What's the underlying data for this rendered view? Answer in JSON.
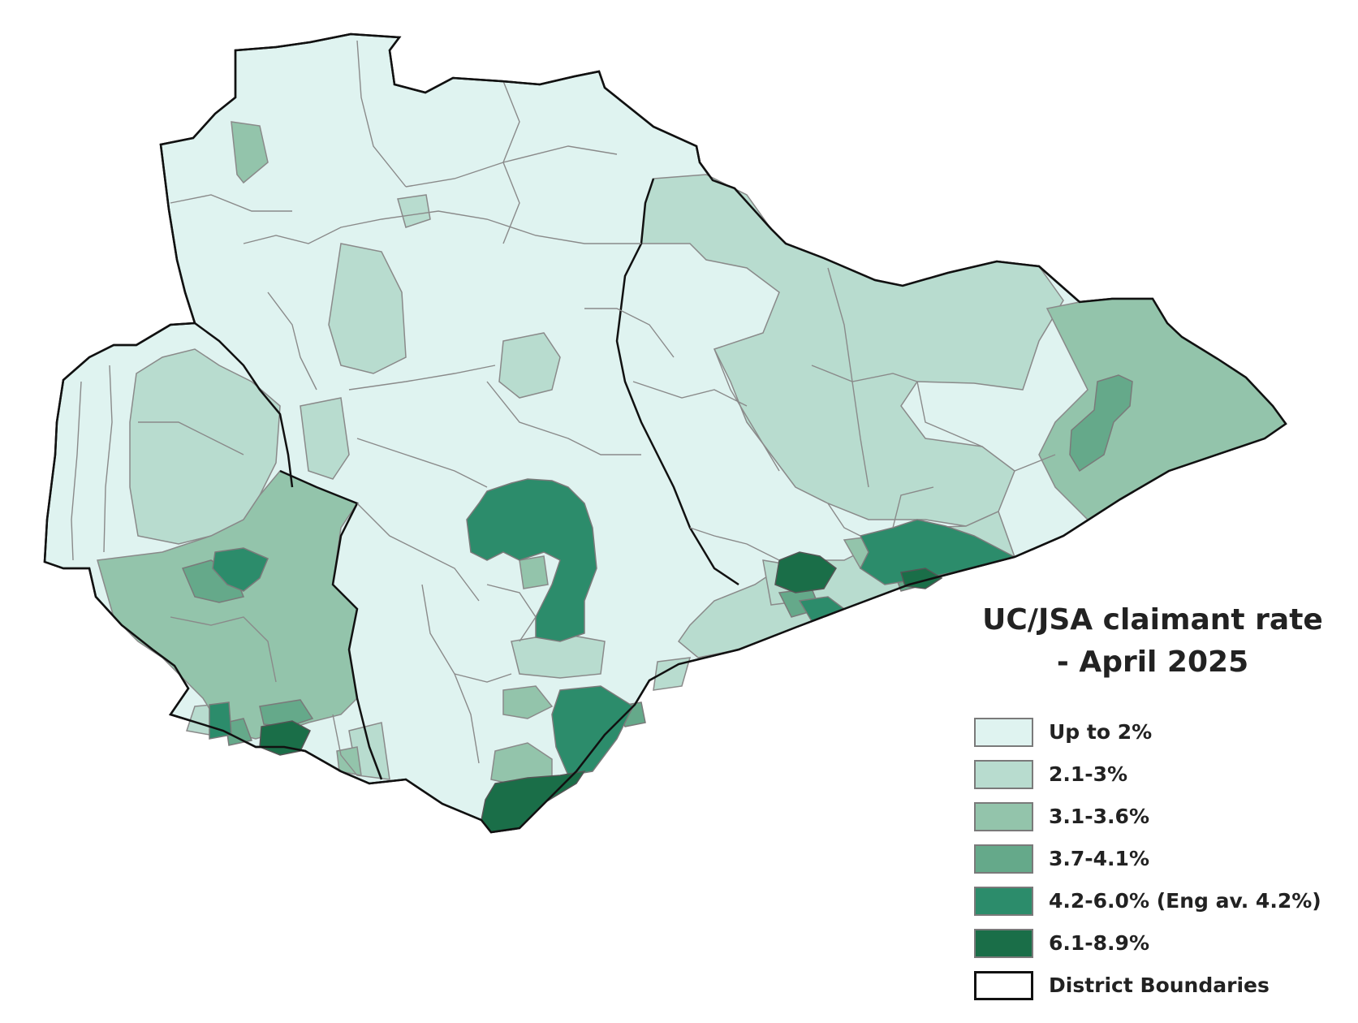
{
  "title": {
    "line1": "UC/JSA claimant rate",
    "line2": "- April 2025"
  },
  "legend": {
    "items": [
      {
        "label": "Up to 2%",
        "color": "#dff3f0"
      },
      {
        "label": "2.1-3%",
        "color": "#b8dccf"
      },
      {
        "label": "3.1-3.6%",
        "color": "#93c4ab"
      },
      {
        "label": "3.7-4.1%",
        "color": "#65a98a"
      },
      {
        "label": "4.2-6.0% (Eng av. 4.2%)",
        "color": "#2c8c6b"
      },
      {
        "label": "6.1-8.9%",
        "color": "#1a6e48"
      }
    ],
    "boundary_label": "District Boundaries"
  },
  "colors": {
    "ward_border": "#8a8a8a",
    "district_border": "#111111"
  }
}
